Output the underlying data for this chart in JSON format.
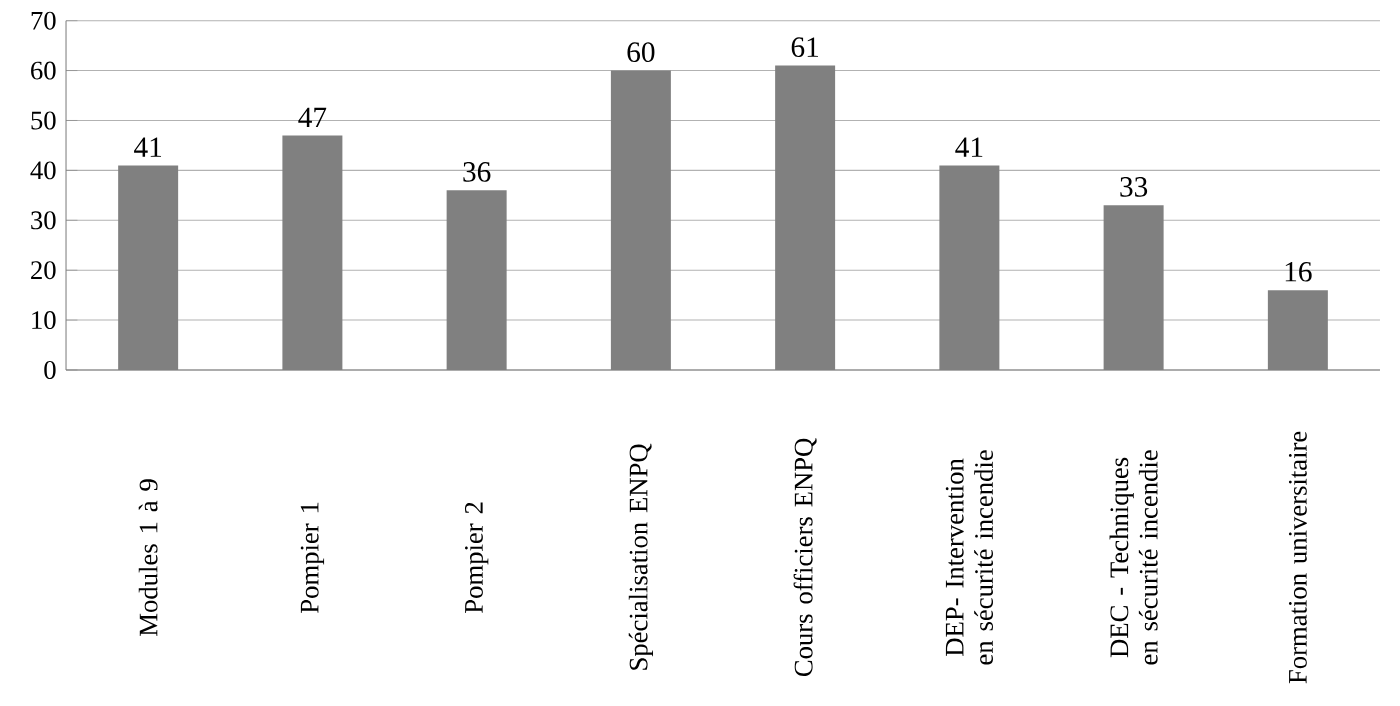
{
  "chart_data": {
    "type": "bar",
    "categories": [
      "Modules 1 à 9",
      "Pompier 1",
      "Pompier 2",
      "Spécialisation ENPQ",
      "Cours officiers ENPQ",
      "DEP- Intervention en sécurité incendie",
      "DEC - Techniques en sécurité incendie",
      "Formation universitaire"
    ],
    "values": [
      41,
      47,
      36,
      60,
      61,
      41,
      33,
      16
    ],
    "color": "#808080",
    "ylim": [
      0,
      70
    ],
    "yticks": [
      0,
      10,
      20,
      30,
      40,
      50,
      60,
      70
    ],
    "grid": "y",
    "data_labels": true
  }
}
